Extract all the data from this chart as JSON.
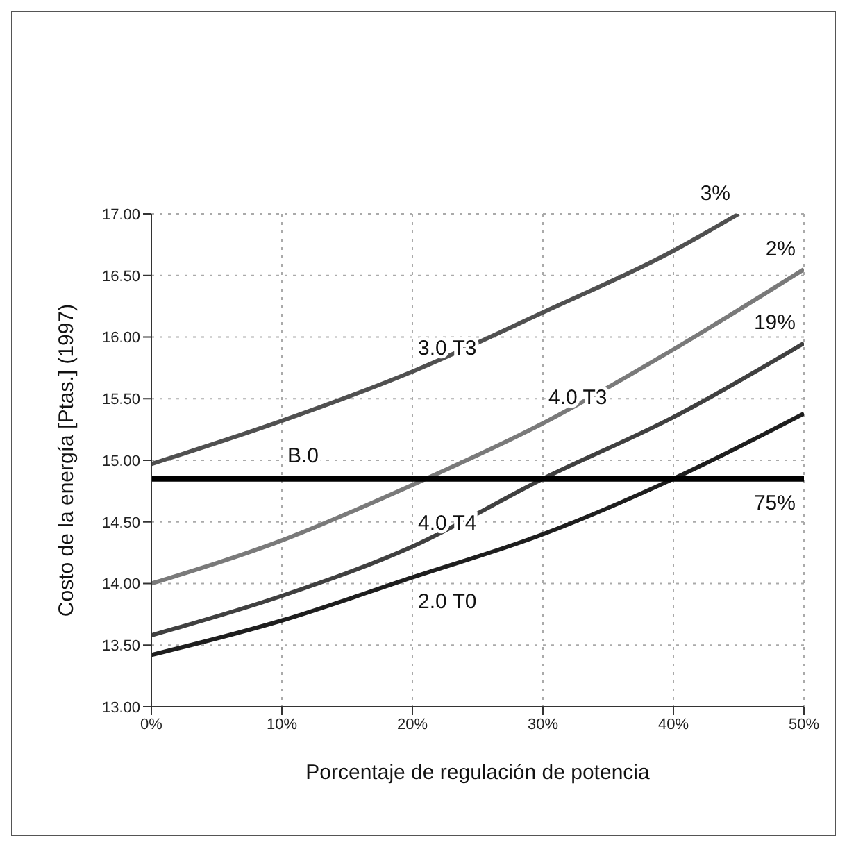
{
  "chart_data": {
    "type": "line",
    "xlabel": "Porcentaje de regulación de potencia",
    "ylabel": "Costo de la energía [Ptas.] (1997)",
    "x": [
      0,
      10,
      20,
      30,
      40,
      50
    ],
    "series": [
      {
        "name": "3.0 T3",
        "color": "#505050",
        "x": [
          0,
          10,
          20,
          30,
          40,
          45
        ],
        "values": [
          14.97,
          15.32,
          15.72,
          16.2,
          16.7,
          17.0
        ]
      },
      {
        "name": "4.0 T3",
        "color": "#7a7a7a",
        "values": [
          14.0,
          14.35,
          14.8,
          15.3,
          15.9,
          16.55
        ]
      },
      {
        "name": "4.0 T4",
        "color": "#404040",
        "values": [
          13.58,
          13.9,
          14.3,
          14.85,
          15.35,
          15.95
        ]
      },
      {
        "name": "2.0 T0",
        "color": "#1e1e1e",
        "values": [
          13.42,
          13.7,
          14.05,
          14.4,
          14.85,
          15.38
        ]
      },
      {
        "name": "B.0",
        "color": "#000000",
        "values": [
          14.85,
          14.85,
          14.85,
          14.85,
          14.85,
          14.85
        ]
      }
    ],
    "annotations": [
      "3%",
      "2%",
      "19%",
      "75%"
    ],
    "xlim": [
      0,
      50
    ],
    "xticks": [
      {
        "value": 0,
        "label": "0%"
      },
      {
        "value": 10,
        "label": "10%"
      },
      {
        "value": 20,
        "label": "20%"
      },
      {
        "value": 30,
        "label": "30%"
      },
      {
        "value": 40,
        "label": "40%"
      },
      {
        "value": 50,
        "label": "50%"
      }
    ],
    "ylim": [
      13,
      17
    ],
    "yticks": [
      {
        "value": 13,
        "label": "13.00"
      },
      {
        "value": 13.5,
        "label": "13.50"
      },
      {
        "value": 14,
        "label": "14.00"
      },
      {
        "value": 14.5,
        "label": "14.50"
      },
      {
        "value": 15,
        "label": "15.00"
      },
      {
        "value": 15.5,
        "label": "15.50"
      },
      {
        "value": 16,
        "label": "16.00"
      },
      {
        "value": 16.5,
        "label": "16.50"
      },
      {
        "value": 17,
        "label": "17.00"
      }
    ],
    "grid": true,
    "legend": false,
    "marker": "none",
    "line_style": "solid"
  }
}
